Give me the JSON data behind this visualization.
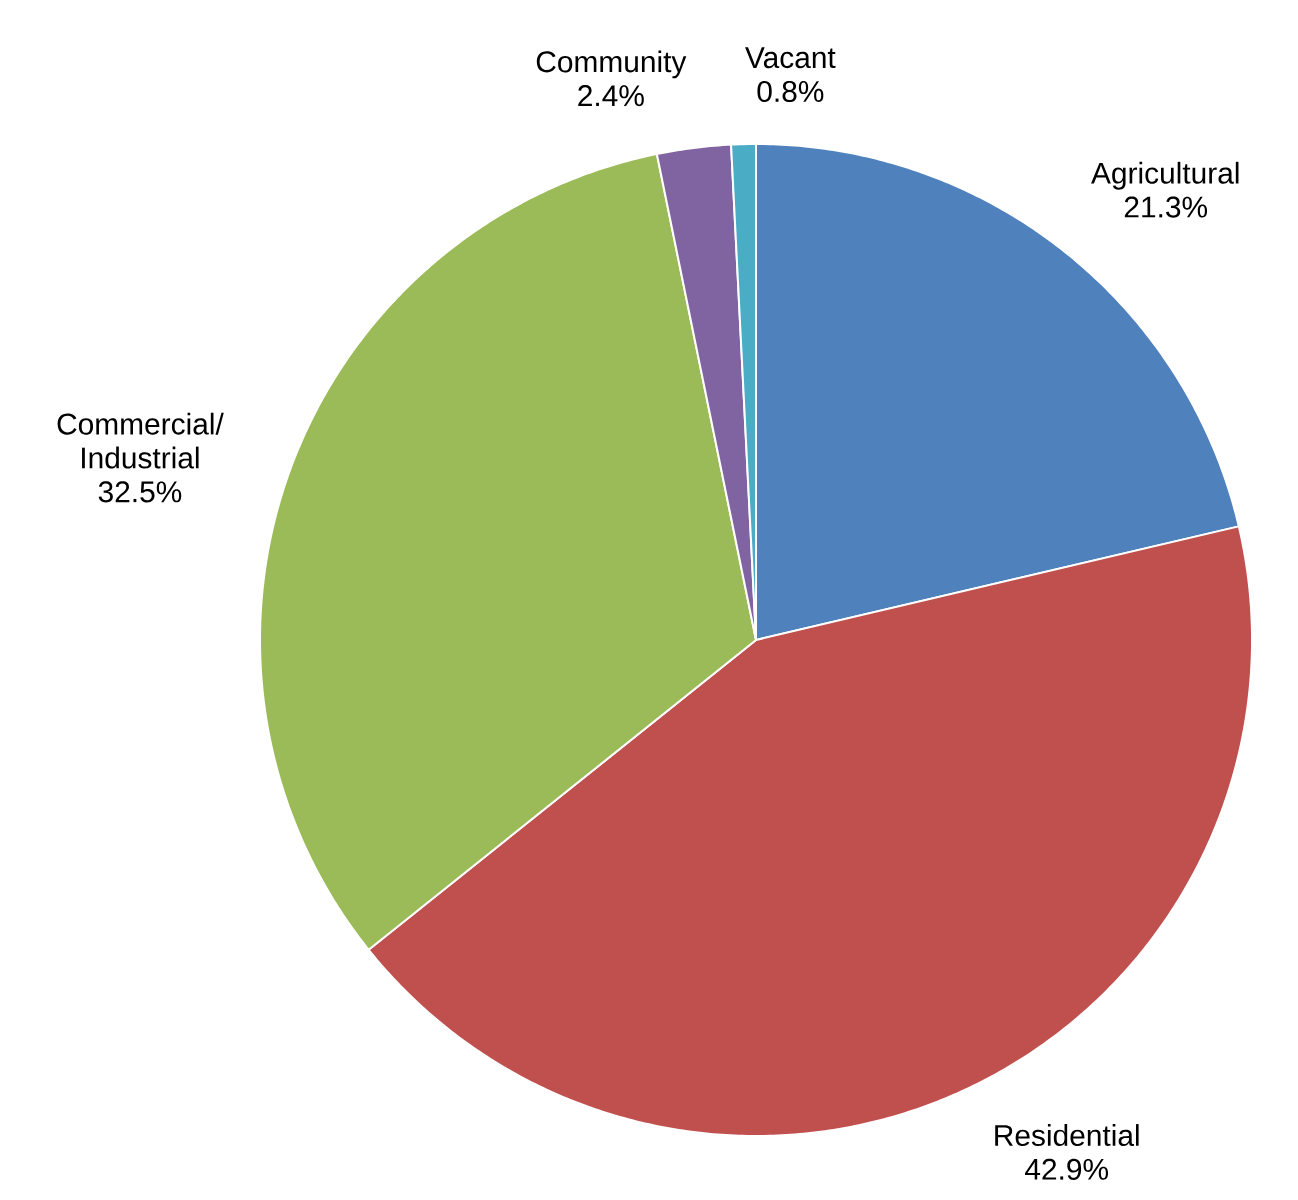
{
  "chart_data": {
    "type": "pie",
    "categories": [
      "Agricultural",
      "Residential",
      "Commercial/Industrial",
      "Community",
      "Vacant"
    ],
    "values": [
      21.3,
      42.9,
      32.5,
      2.4,
      0.8
    ],
    "value_labels": [
      "21.3%",
      "42.9%",
      "32.5%",
      "2.4%",
      "0.8%"
    ],
    "colors": [
      "#4f81bd",
      "#c0504d",
      "#9bbb59",
      "#8064a2",
      "#4bacc6"
    ]
  }
}
